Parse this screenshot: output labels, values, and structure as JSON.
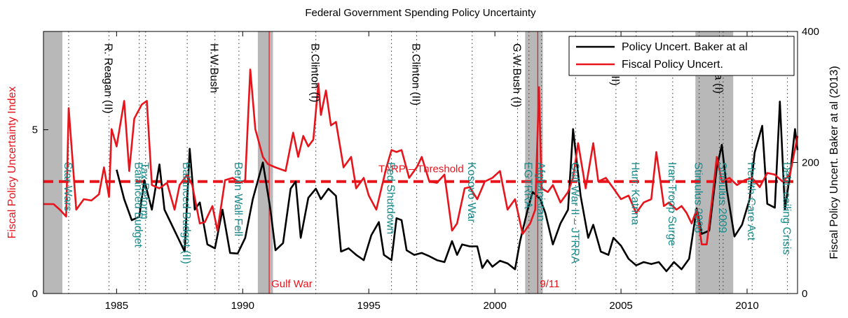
{
  "chart_data": {
    "type": "line",
    "title": "Federal Government Spending Policy Uncertainty",
    "y_label": "Fiscal Policy Uncertainty Index",
    "y2_label": "Fiscal Policy Uncert. Baker at al (2013)",
    "xlim": [
      1982.1,
      2012
    ],
    "xticks": [
      1985,
      1990,
      1995,
      2000,
      2005,
      2010
    ],
    "ylim": [
      0,
      8
    ],
    "yticks": [
      0,
      5
    ],
    "y2lim": [
      0,
      400
    ],
    "y2ticks": [
      0,
      200,
      400
    ],
    "legend": "upper right",
    "recessions": [
      [
        1982.1,
        1982.85
      ],
      [
        1990.6,
        1991.2
      ],
      [
        2001.2,
        2001.9
      ],
      [
        2007.95,
        2009.45
      ]
    ],
    "threshold": {
      "value": 3.42,
      "label": "TARP – Threshold",
      "color": "#e8141c"
    },
    "shocks": [
      {
        "x": 1991.05,
        "label": "Gulf War"
      },
      {
        "x": 2001.7,
        "label": "9/11"
      }
    ],
    "presidents": [
      {
        "x": 1984.7,
        "label": "R. Reagan (II)"
      },
      {
        "x": 1988.9,
        "label": "H.W.Bush"
      },
      {
        "x": 1992.9,
        "label": "B.Clinton (I)"
      },
      {
        "x": 1996.9,
        "label": "B.Clinton (II)"
      },
      {
        "x": 2000.9,
        "label": "G.W.Bush (I)"
      },
      {
        "x": 2004.8,
        "label": "Bush (II)"
      },
      {
        "x": 2008.9,
        "label": "Obama (I)"
      }
    ],
    "events": [
      {
        "x": 1983.1,
        "label": "Star Wars"
      },
      {
        "x": 1985.9,
        "label": "Balanced Budget"
      },
      {
        "x": 1986.15,
        "label": "Tax Reform"
      },
      {
        "x": 1987.8,
        "label": "Balanced Budget (II)"
      },
      {
        "x": 1989.85,
        "label": "Berlin Wall Fell"
      },
      {
        "x": 1995.9,
        "label": "Fed Shutdown"
      },
      {
        "x": 1999.1,
        "label": "Kosovo War"
      },
      {
        "x": 2001.35,
        "label": "EGTRRA"
      },
      {
        "x": 2001.85,
        "label": "Afghanistan"
      },
      {
        "x": 2003.2,
        "label": "Gulf War II – JTRRA"
      },
      {
        "x": 2005.6,
        "label": "Hurr. Katrina"
      },
      {
        "x": 2007.05,
        "label": "Iran Troop Surge"
      },
      {
        "x": 2008.1,
        "label": "Stimulus 2008"
      },
      {
        "x": 2009.05,
        "label": "Stimulus 2009"
      },
      {
        "x": 2010.2,
        "label": "Health Care Act"
      },
      {
        "x": 2011.6,
        "label": "Debt–ceiling Crisis"
      }
    ],
    "series": [
      {
        "name": "Policy Uncert. Baker at al",
        "color": "#000000",
        "axis": "y2",
        "x": [
          1985.0,
          1985.3,
          1985.6,
          1985.9,
          1986.1,
          1986.4,
          1986.7,
          1986.9,
          1987.3,
          1987.7,
          1987.9,
          1988.1,
          1988.3,
          1988.6,
          1988.9,
          1989.2,
          1989.5,
          1989.8,
          1990.1,
          1990.4,
          1990.8,
          1991.1,
          1991.3,
          1991.6,
          1991.9,
          1992.1,
          1992.3,
          1992.6,
          1992.9,
          1993.1,
          1993.4,
          1993.7,
          1993.9,
          1994.2,
          1994.5,
          1994.8,
          1995.1,
          1995.4,
          1995.6,
          1995.9,
          1996.1,
          1996.3,
          1996.5,
          1996.8,
          1997.1,
          1997.4,
          1997.7,
          1998.0,
          1998.3,
          1998.5,
          1998.7,
          1999.0,
          1999.3,
          1999.5,
          1999.7,
          1999.9,
          2000.2,
          2000.5,
          2000.8,
          2001.0,
          2001.3,
          2001.5,
          2001.8,
          2002.0,
          2002.3,
          2002.6,
          2002.9,
          2003.1,
          2003.4,
          2003.7,
          2003.9,
          2004.2,
          2004.5,
          2004.7,
          2005.0,
          2005.3,
          2005.6,
          2005.9,
          2006.2,
          2006.5,
          2006.8,
          2007.1,
          2007.4,
          2007.7,
          2008.0,
          2008.2,
          2008.5,
          2008.8,
          2009.0,
          2009.2,
          2009.5,
          2009.8,
          2010.1,
          2010.3,
          2010.6,
          2010.8,
          2011.1,
          2011.3,
          2011.5,
          2011.7,
          2011.9,
          2012.0
        ],
        "values": [
          189,
          144,
          112,
          117,
          173,
          128,
          197,
          128,
          96,
          64,
          221,
          128,
          139,
          75,
          69,
          128,
          62,
          61,
          85,
          144,
          200,
          128,
          66,
          77,
          160,
          171,
          85,
          146,
          160,
          144,
          160,
          149,
          64,
          69,
          59,
          51,
          89,
          109,
          59,
          51,
          115,
          112,
          66,
          59,
          62,
          57,
          51,
          48,
          80,
          59,
          75,
          72,
          72,
          39,
          51,
          41,
          50,
          46,
          37,
          80,
          128,
          155,
          144,
          123,
          75,
          107,
          128,
          251,
          149,
          85,
          105,
          64,
          59,
          85,
          73,
          53,
          43,
          48,
          45,
          48,
          34,
          48,
          37,
          53,
          130,
          91,
          96,
          192,
          227,
          158,
          87,
          105,
          144,
          215,
          256,
          137,
          131,
          293,
          128,
          181,
          251,
          219
        ]
      },
      {
        "name": "Fiscal Policy Uncert.",
        "color": "#e8141c",
        "x": [
          1982.1,
          1982.5,
          1982.75,
          1983.0,
          1983.1,
          1983.4,
          1983.7,
          1984.0,
          1984.3,
          1984.5,
          1984.7,
          1984.8,
          1985.0,
          1985.3,
          1985.5,
          1985.7,
          1986.0,
          1986.2,
          1986.4,
          1986.7,
          1987.0,
          1987.3,
          1987.5,
          1987.8,
          1988.0,
          1988.3,
          1988.5,
          1988.8,
          1989.0,
          1989.3,
          1989.6,
          1989.9,
          1990.1,
          1990.3,
          1990.5,
          1990.8,
          1991.0,
          1991.3,
          1991.7,
          1992.0,
          1992.2,
          1992.4,
          1992.6,
          1992.8,
          1993.0,
          1993.1,
          1993.3,
          1993.5,
          1993.7,
          1994.0,
          1994.3,
          1994.5,
          1994.8,
          1995.0,
          1995.3,
          1995.5,
          1995.7,
          1995.9,
          1996.1,
          1996.3,
          1996.6,
          1996.9,
          1997.1,
          1997.4,
          1997.7,
          1998.0,
          1998.3,
          1998.5,
          1998.8,
          1999.0,
          1999.3,
          1999.6,
          1999.9,
          2000.2,
          2000.5,
          2000.8,
          2001.1,
          2001.4,
          2001.6,
          2001.75,
          2001.85,
          2002.1,
          2002.3,
          2002.6,
          2002.9,
          2003.1,
          2003.3,
          2003.6,
          2003.9,
          2004.1,
          2004.4,
          2004.7,
          2005.0,
          2005.3,
          2005.6,
          2005.9,
          2006.2,
          2006.4,
          2006.7,
          2006.9,
          2007.2,
          2007.4,
          2007.6,
          2007.8,
          2008.0,
          2008.2,
          2008.4,
          2008.6,
          2008.8,
          2009.0,
          2009.3,
          2009.6,
          2009.9,
          2010.2,
          2010.5,
          2010.8,
          2011.1,
          2011.4,
          2011.7,
          2012.0
        ],
        "values": [
          2.73,
          2.73,
          2.56,
          2.35,
          5.66,
          2.56,
          2.88,
          2.84,
          3.03,
          3.85,
          2.95,
          5.02,
          4.49,
          5.88,
          3.74,
          5.34,
          5.77,
          5.88,
          3.31,
          3.21,
          3.38,
          2.56,
          3.31,
          3.63,
          3.31,
          2.14,
          2.18,
          2.67,
          1.92,
          3.46,
          3.53,
          3.38,
          3.46,
          6.84,
          5.02,
          4.17,
          3.95,
          3.85,
          3.74,
          4.91,
          4.17,
          4.81,
          4.49,
          4.7,
          6.41,
          5.45,
          6.2,
          5.13,
          5.24,
          3.85,
          4.17,
          3.21,
          3.53,
          2.99,
          2.56,
          3.21,
          3.85,
          4.38,
          4.32,
          4.38,
          3.53,
          3.85,
          4.17,
          3.42,
          3.38,
          3.63,
          1.92,
          2.14,
          3.21,
          3.25,
          2.88,
          3.42,
          3.53,
          3.74,
          2.56,
          2.88,
          1.82,
          2.14,
          2.56,
          6.3,
          3.21,
          3.1,
          3.31,
          2.78,
          3.1,
          3.53,
          4.59,
          3.21,
          4.59,
          3.42,
          3.53,
          3.21,
          2.88,
          2.99,
          2.46,
          2.78,
          2.88,
          4.32,
          2.67,
          2.78,
          2.56,
          2.67,
          2.46,
          2.14,
          2.56,
          1.5,
          1.5,
          2.78,
          4.17,
          3.42,
          3.53,
          3.31,
          3.46,
          3.53,
          3.25,
          3.68,
          3.63,
          3.42,
          3.63,
          4.81
        ]
      }
    ]
  }
}
